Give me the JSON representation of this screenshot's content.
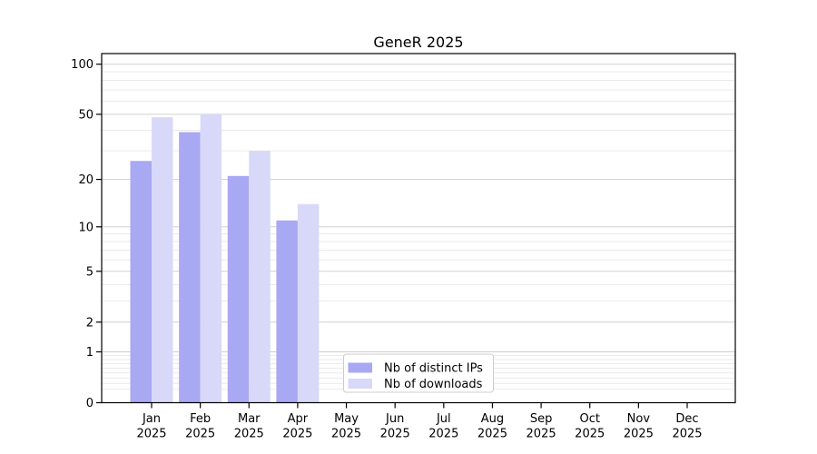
{
  "chart_data": {
    "type": "bar",
    "title": "GeneR 2025",
    "categories": [
      "Jan",
      "Feb",
      "Mar",
      "Apr",
      "May",
      "Jun",
      "Jul",
      "Aug",
      "Sep",
      "Oct",
      "Nov",
      "Dec"
    ],
    "category_year": "2025",
    "series": [
      {
        "name": "Nb of distinct IPs",
        "color": "#a8a8f3",
        "values": [
          26,
          39,
          21,
          11,
          null,
          null,
          null,
          null,
          null,
          null,
          null,
          null
        ]
      },
      {
        "name": "Nb of downloads",
        "color": "#d8d9f9",
        "values": [
          48,
          50,
          30,
          14,
          null,
          null,
          null,
          null,
          null,
          null,
          null,
          null
        ]
      }
    ],
    "axis": {
      "y_scale": "log10(1+value)",
      "yticks": [
        0,
        1,
        2,
        5,
        10,
        20,
        50,
        100
      ],
      "minor_gridlines": [
        0.2,
        0.3,
        0.4,
        0.5,
        0.6,
        0.7,
        0.8,
        0.9,
        3,
        4,
        6,
        7,
        8,
        9,
        30,
        40,
        60,
        70,
        80,
        90
      ],
      "ylim": [
        0,
        115
      ],
      "grid": "horizontal",
      "xlabel": "",
      "ylabel": ""
    },
    "legend": {
      "position": "lower center"
    },
    "colors": {
      "grid_major": "#d0d0d0",
      "grid_minor": "#eaeaea",
      "spine": "#000000",
      "legend_border": "#cccccc",
      "legend_background": "#ffffff"
    }
  }
}
